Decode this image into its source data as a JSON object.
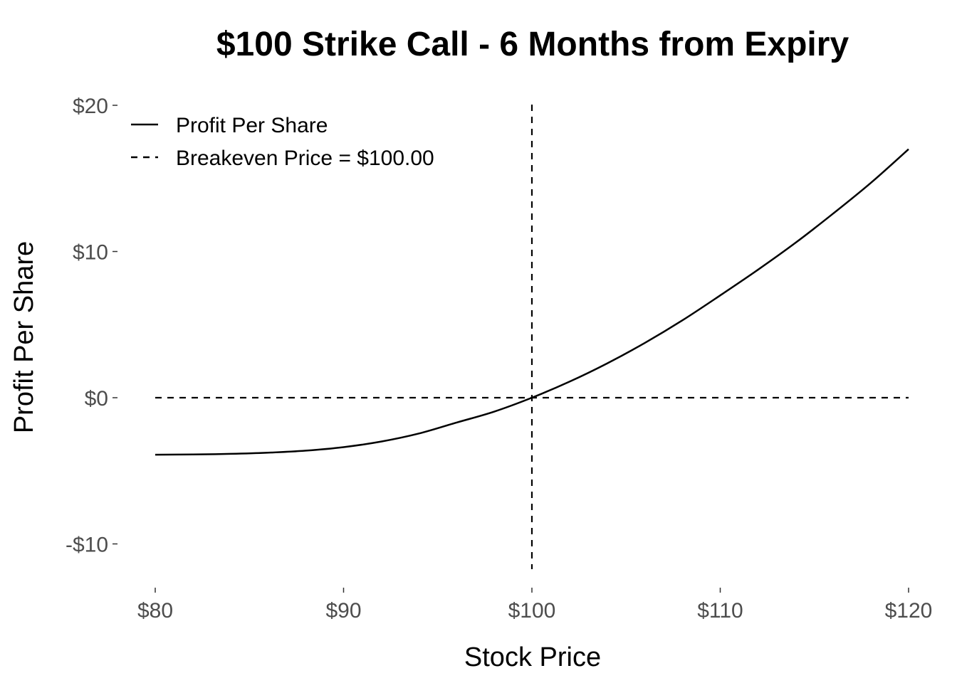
{
  "chart_data": {
    "type": "line",
    "title": "$100 Strike Call - 6 Months from Expiry",
    "xlabel": "Stock Price",
    "ylabel": "Profit Per Share",
    "xlim": [
      80,
      120
    ],
    "ylim": [
      -12,
      20
    ],
    "x_ticks": [
      80,
      90,
      100,
      110,
      120
    ],
    "x_tick_labels": [
      "$80",
      "$90",
      "$100",
      "$110",
      "$120"
    ],
    "y_ticks": [
      -10,
      0,
      10,
      20
    ],
    "y_tick_labels": [
      "-$10",
      "$0",
      "$10",
      "$20"
    ],
    "grid": false,
    "legend_position": "top-left",
    "series": [
      {
        "name": "Profit Per Share",
        "style": "solid",
        "color": "#000000",
        "x": [
          80,
          82,
          84,
          86,
          88,
          90,
          92,
          94,
          96,
          98,
          100,
          102,
          104,
          106,
          108,
          110,
          112,
          114,
          116,
          118,
          120
        ],
        "y": [
          -3.9,
          -3.88,
          -3.84,
          -3.76,
          -3.62,
          -3.38,
          -3.0,
          -2.45,
          -1.7,
          -0.95,
          0.0,
          1.1,
          2.35,
          3.75,
          5.3,
          7.0,
          8.75,
          10.6,
          12.6,
          14.7,
          17.0
        ]
      }
    ],
    "reference_lines": [
      {
        "name": "Breakeven Price = $100.00",
        "orientation": "vertical",
        "value": 100,
        "style": "dashed"
      },
      {
        "orientation": "horizontal",
        "value": 0,
        "style": "dashed"
      }
    ]
  }
}
